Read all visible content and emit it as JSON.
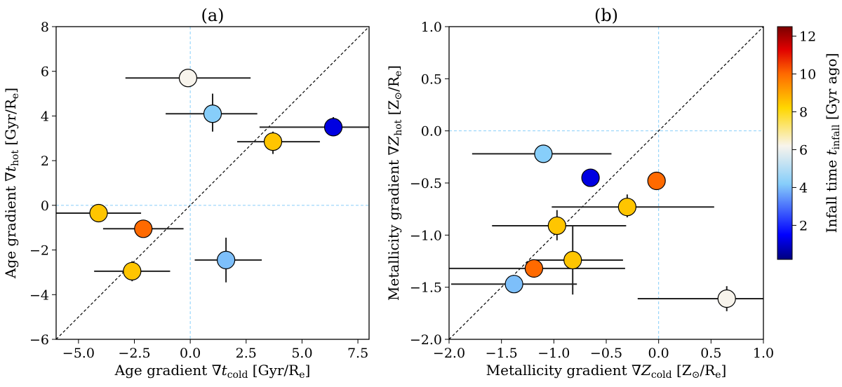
{
  "figure": "two-panel scatter with error bars and infall-time colorbar",
  "chart_data": [
    {
      "type": "scatter",
      "panel": "a",
      "title": "(a)",
      "xlabel": {
        "pre": "Age gradient ∇",
        "sym": "t",
        "sub": "cold",
        "post": " [Gyr/R",
        "unit_sub": "e",
        "close": "]"
      },
      "ylabel": {
        "pre": "Age gradient ∇",
        "sym": "t",
        "sub": "hot",
        "post": " [Gyr/R",
        "unit_sub": "e",
        "close": "]"
      },
      "xlim": [
        -6,
        8
      ],
      "ylim": [
        -6,
        8
      ],
      "xticks": [
        -5.0,
        -2.5,
        0.0,
        2.5,
        5.0,
        7.5
      ],
      "xtick_labels": [
        "−5.0",
        "−2.5",
        "0.0",
        "2.5",
        "5.0",
        "7.5"
      ],
      "yticks": [
        -6,
        -4,
        -2,
        0,
        2,
        4,
        6,
        8
      ],
      "ytick_labels": [
        "−6",
        "−4",
        "−2",
        "0",
        "2",
        "4",
        "6",
        "8"
      ],
      "one_to_one_line": true,
      "zero_lines": true,
      "points": [
        {
          "x": -0.1,
          "y": 5.7,
          "xerr": [
            2.8,
            2.8
          ],
          "yerr": [
            0,
            0
          ],
          "infall": 6.2
        },
        {
          "x": 1.0,
          "y": 4.1,
          "xerr": [
            2.1,
            2.0
          ],
          "yerr": [
            0.8,
            0.9
          ],
          "infall": 4.2
        },
        {
          "x": 6.4,
          "y": 3.5,
          "xerr": [
            3.3,
            3.3
          ],
          "yerr": [
            0.4,
            0.45
          ],
          "infall": 1.2
        },
        {
          "x": 3.7,
          "y": 2.85,
          "xerr": [
            1.6,
            2.1
          ],
          "yerr": [
            0.55,
            0.45
          ],
          "infall": 8.5
        },
        {
          "x": -4.1,
          "y": -0.35,
          "xerr": [
            1.9,
            1.9
          ],
          "yerr": [
            0.0,
            0.0
          ],
          "infall": 8.5
        },
        {
          "x": -2.1,
          "y": -1.05,
          "xerr": [
            1.8,
            1.8
          ],
          "yerr": [
            0,
            0
          ],
          "infall": 10.0
        },
        {
          "x": 1.6,
          "y": -2.45,
          "xerr": [
            1.4,
            1.6
          ],
          "yerr": [
            1.0,
            1.0
          ],
          "infall": 4.0
        },
        {
          "x": -2.6,
          "y": -2.95,
          "xerr": [
            1.7,
            1.7
          ],
          "yerr": [
            0.45,
            0.45
          ],
          "infall": 8.5
        }
      ]
    },
    {
      "type": "scatter",
      "panel": "b",
      "title": "(b)",
      "xlabel": {
        "pre": "Metallicity gradient ∇",
        "sym": "Z",
        "sub": "cold",
        "post": " [Z",
        "unit_sub": "⊙",
        "mid": "/R",
        "unit_sub2": "e",
        "close": "]"
      },
      "ylabel": {
        "pre": "Metallicity gradient ∇",
        "sym": "Z",
        "sub": "hot",
        "post": " [Z",
        "unit_sub": "⊙",
        "mid": "/R",
        "unit_sub2": "e",
        "close": "]"
      },
      "xlim": [
        -2.0,
        1.0
      ],
      "ylim": [
        -2.0,
        1.0
      ],
      "xticks": [
        -2.0,
        -1.5,
        -1.0,
        -0.5,
        0.0,
        0.5,
        1.0
      ],
      "xtick_labels": [
        "−2.0",
        "−1.5",
        "−1.0",
        "−0.5",
        "0.0",
        "0.5",
        "1.0"
      ],
      "yticks": [
        -2.0,
        -1.5,
        -1.0,
        -0.5,
        0.0,
        0.5,
        1.0
      ],
      "ytick_labels": [
        "−2.0",
        "−1.5",
        "−1.0",
        "−0.5",
        "0.0",
        "0.5",
        "1.0"
      ],
      "one_to_one_line": true,
      "zero_lines": true,
      "points": [
        {
          "x": -1.1,
          "y": -0.22,
          "xerr": [
            0.68,
            0.65
          ],
          "yerr": [
            0.05,
            0.05
          ],
          "infall": 4.2
        },
        {
          "x": -0.65,
          "y": -0.45,
          "xerr": [
            0,
            0
          ],
          "yerr": [
            0,
            0
          ],
          "infall": 1.2
        },
        {
          "x": -0.02,
          "y": -0.48,
          "xerr": [
            0,
            0
          ],
          "yerr": [
            0,
            0
          ],
          "infall": 10.0
        },
        {
          "x": -0.3,
          "y": -0.73,
          "xerr": [
            0.72,
            0.83
          ],
          "yerr": [
            0.1,
            0.12
          ],
          "infall": 8.5
        },
        {
          "x": -0.97,
          "y": -0.91,
          "xerr": [
            0.62,
            0.66
          ],
          "yerr": [
            0.14,
            0.15
          ],
          "infall": 8.5
        },
        {
          "x": -0.82,
          "y": -1.24,
          "xerr": [
            0.38,
            0.48
          ],
          "yerr": [
            0.33,
            0.33
          ],
          "infall": 8.5
        },
        {
          "x": -1.19,
          "y": -1.32,
          "xerr": [
            0.81,
            0.87
          ],
          "yerr": [
            0.0,
            0.0
          ],
          "infall": 10.0
        },
        {
          "x": -1.38,
          "y": -1.47,
          "xerr": [
            0.6,
            0.6
          ],
          "yerr": [
            0.0,
            0.0
          ],
          "infall": 4.0
        },
        {
          "x": 0.65,
          "y": -1.61,
          "xerr": [
            0.85,
            0.35
          ],
          "yerr": [
            0.12,
            0.12
          ],
          "infall": 6.2
        }
      ]
    }
  ],
  "colorbar": {
    "label_pre": "Infall time ",
    "label_sym": "t",
    "label_sub": "infall",
    "label_post": " [Gyr ago]",
    "range": [
      0.2,
      12.5
    ],
    "ticks": [
      2,
      4,
      6,
      8,
      10,
      12
    ],
    "tick_labels": [
      "2",
      "4",
      "6",
      "8",
      "10",
      "12"
    ],
    "colormap_stops": [
      {
        "v": 0.2,
        "color": "#00007f"
      },
      {
        "v": 1.5,
        "color": "#0000ff"
      },
      {
        "v": 4.2,
        "color": "#87cefa"
      },
      {
        "v": 6.2,
        "color": "#f8f4ec"
      },
      {
        "v": 8.2,
        "color": "#ffd700"
      },
      {
        "v": 10.0,
        "color": "#ff6a00"
      },
      {
        "v": 11.3,
        "color": "#e00000"
      },
      {
        "v": 12.5,
        "color": "#7a0000"
      }
    ]
  },
  "style": {
    "marker_edge": "#000000",
    "errorbar_color": "#222222",
    "zero_line_color": "#87cefa",
    "diag_line_color": "#000000"
  }
}
